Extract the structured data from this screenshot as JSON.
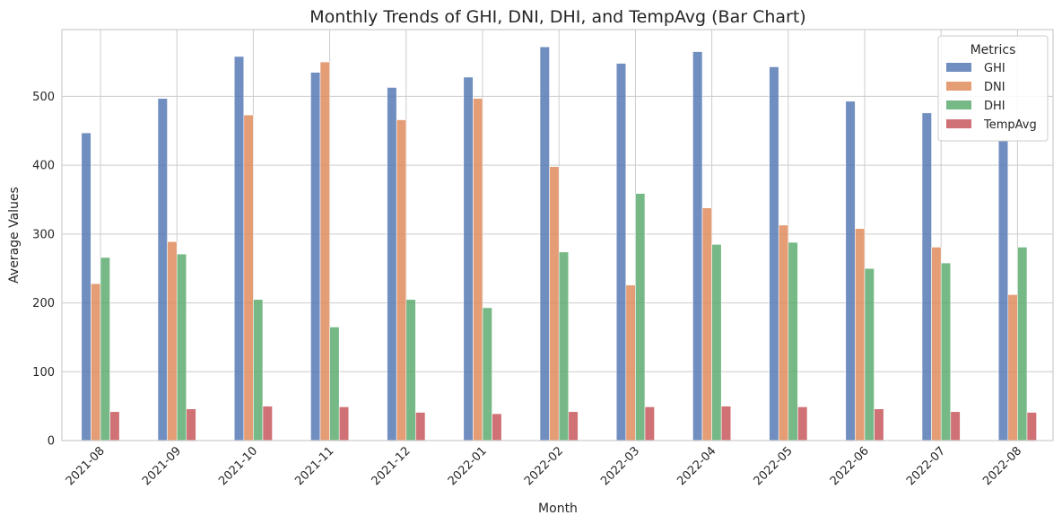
{
  "chart_data": {
    "type": "bar",
    "title": "Monthly Trends of GHI, DNI, DHI, and TempAvg (Bar Chart)",
    "xlabel": "Month",
    "ylabel": "Average Values",
    "ylim": [
      0,
      597
    ],
    "yticks": [
      0,
      100,
      200,
      300,
      400,
      500
    ],
    "grid": true,
    "legend": {
      "title": "Metrics",
      "position": "top-right"
    },
    "categories": [
      "2021-08",
      "2021-09",
      "2021-10",
      "2021-11",
      "2021-12",
      "2022-01",
      "2022-02",
      "2022-03",
      "2022-04",
      "2022-05",
      "2022-06",
      "2022-07",
      "2022-08"
    ],
    "series": [
      {
        "name": "GHI",
        "color": "#4c72b0",
        "values": [
          447,
          497,
          558,
          535,
          513,
          528,
          572,
          548,
          565,
          543,
          493,
          476,
          436
        ]
      },
      {
        "name": "DNI",
        "color": "#dd8452",
        "values": [
          228,
          289,
          473,
          550,
          466,
          497,
          398,
          226,
          338,
          313,
          308,
          281,
          212
        ]
      },
      {
        "name": "DHI",
        "color": "#55a868",
        "values": [
          266,
          271,
          205,
          165,
          205,
          193,
          274,
          359,
          285,
          288,
          250,
          258,
          281
        ]
      },
      {
        "name": "TempAvg",
        "color": "#c44e52",
        "values": [
          42,
          46,
          50,
          49,
          41,
          39,
          42,
          49,
          50,
          49,
          46,
          42,
          41
        ]
      }
    ]
  }
}
